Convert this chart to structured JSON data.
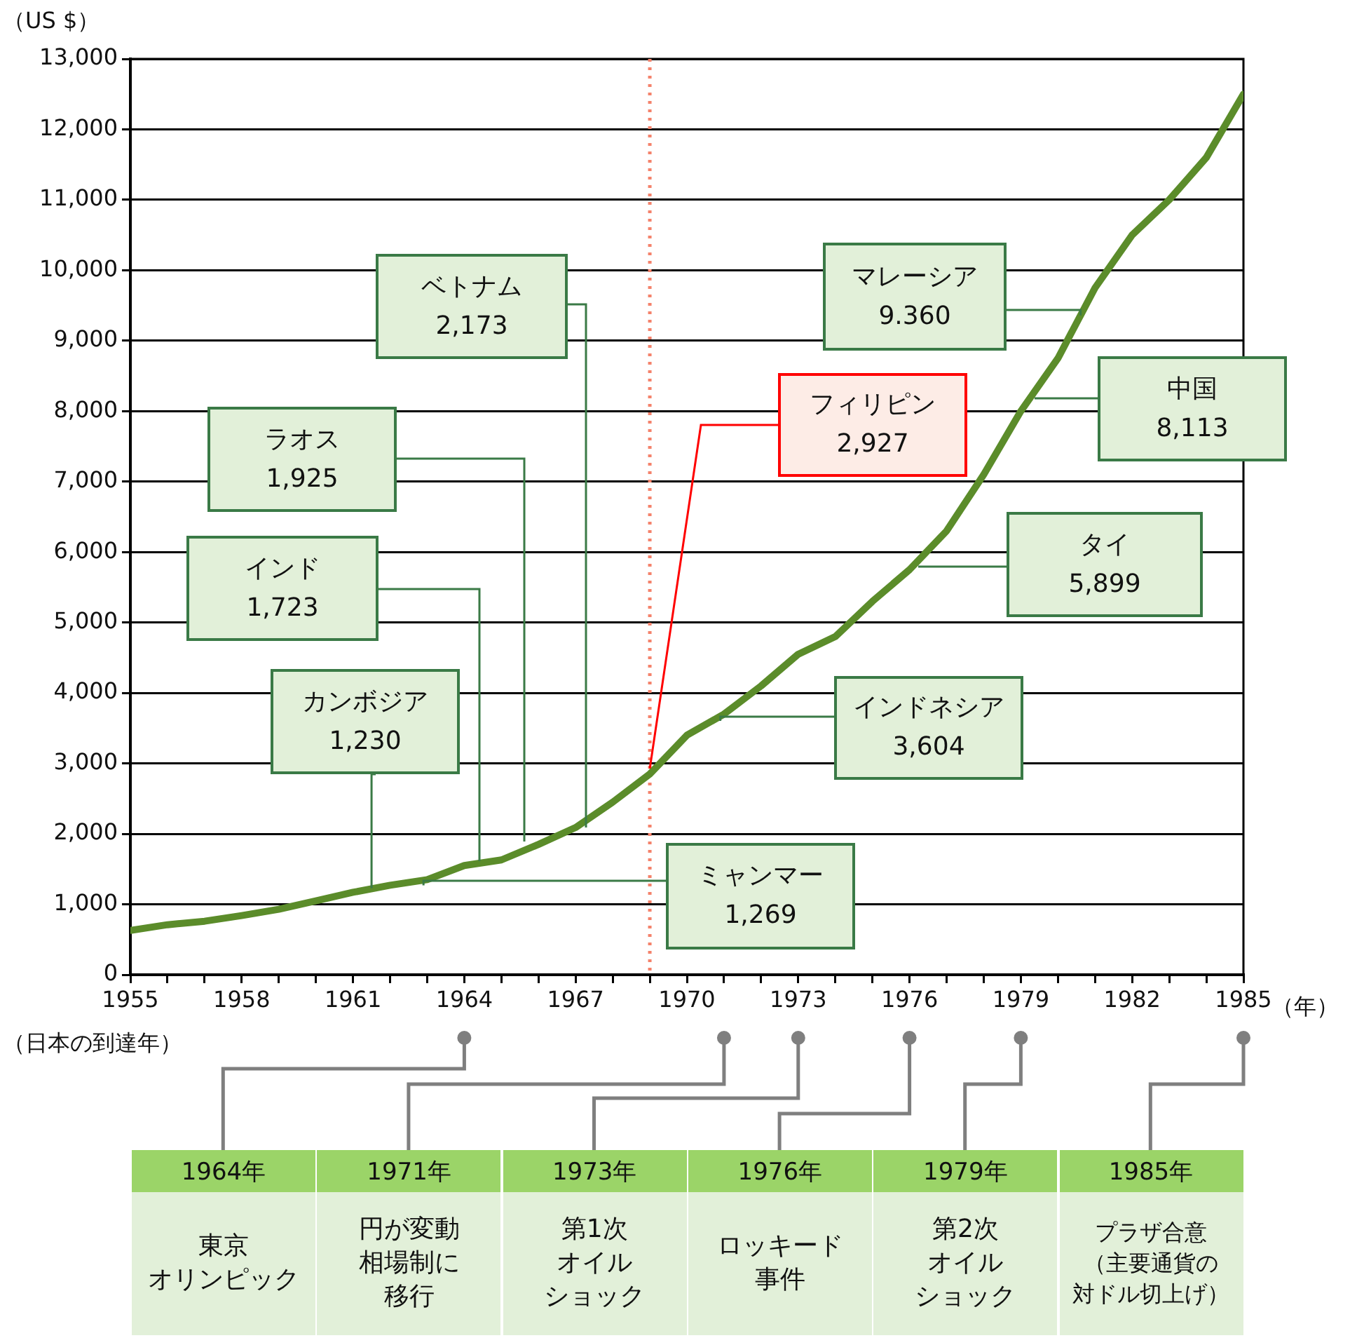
{
  "chart_data": {
    "type": "line",
    "xlabel": "（年）",
    "ylabel": "（US $）",
    "color": "#5b8c2a",
    "marker": "none",
    "line_style": "solid",
    "legend": false,
    "grid": "y",
    "x": [
      1955,
      1956,
      1957,
      1958,
      1959,
      1960,
      1961,
      1962,
      1963,
      1964,
      1965,
      1966,
      1967,
      1968,
      1969,
      1970,
      1971,
      1972,
      1973,
      1974,
      1975,
      1976,
      1977,
      1978,
      1979,
      1980,
      1981,
      1982,
      1983,
      1984,
      1985
    ],
    "values": [
      630,
      710,
      760,
      840,
      930,
      1050,
      1170,
      1270,
      1350,
      1550,
      1630,
      1850,
      2090,
      2450,
      2850,
      3400,
      3700,
      4100,
      4550,
      4800,
      5300,
      5750,
      6300,
      7100,
      8000,
      8750,
      9750,
      10500,
      11000,
      11600,
      12500
    ],
    "xlim": [
      1955,
      1985
    ],
    "xticks": [
      1955,
      {
        "value": 1956,
        "label": null
      },
      {
        "value": 1957,
        "label": null
      },
      1958,
      {
        "value": 1959,
        "label": null
      },
      {
        "value": 1960,
        "label": null
      },
      1961,
      {
        "value": 1962,
        "label": null
      },
      {
        "value": 1963,
        "label": null
      },
      1964,
      {
        "value": 1965,
        "label": null
      },
      {
        "value": 1966,
        "label": null
      },
      1967,
      {
        "value": 1968,
        "label": null
      },
      {
        "value": 1969,
        "label": null
      },
      1970,
      {
        "value": 1971,
        "label": null
      },
      {
        "value": 1972,
        "label": null
      },
      1973,
      {
        "value": 1974,
        "label": null
      },
      {
        "value": 1975,
        "label": null
      },
      1976,
      {
        "value": 1977,
        "label": null
      },
      {
        "value": 1978,
        "label": null
      },
      1979,
      {
        "value": 1980,
        "label": null
      },
      {
        "value": 1981,
        "label": null
      },
      1982,
      {
        "value": 1983,
        "label": null
      },
      {
        "value": 1984,
        "label": null
      },
      1985
    ],
    "ylim": [
      0,
      13000
    ],
    "yticks": [
      0,
      {
        "value": 1000,
        "label": "1,000"
      },
      {
        "value": 2000,
        "label": "2,000"
      },
      {
        "value": 3000,
        "label": "3,000"
      },
      {
        "value": 4000,
        "label": "4,000"
      },
      {
        "value": 5000,
        "label": "5,000"
      },
      {
        "value": 6000,
        "label": "6,000"
      },
      {
        "value": 7000,
        "label": "7,000"
      },
      {
        "value": 8000,
        "label": "8,000"
      },
      {
        "value": 9000,
        "label": "9,000"
      },
      {
        "value": 10000,
        "label": "10,000"
      },
      {
        "value": 11000,
        "label": "11,000"
      },
      {
        "value": 12000,
        "label": "12,000"
      },
      {
        "value": 13000,
        "label": "13,000"
      }
    ],
    "ref_lines": [
      {
        "axis": "x",
        "value": 1969,
        "color": "#f4826b",
        "line_style": "dotted"
      }
    ],
    "annotations": [
      "ベトナム\n2,173",
      "ラオス\n1,925",
      "インド\n1,723",
      {
        "text": "カンボジア\n1,230",
        "x": 1961.5,
        "y": 1230
      },
      {
        "text": "ミャンマー\n1,269",
        "x": 1962.9,
        "y": 1269
      },
      {
        "text": "フィリピン\n2,927",
        "x": 1969,
        "y": 2927
      },
      {
        "text": "インドネシア\n3,604",
        "x": 1970.9,
        "y": 3604
      },
      "タイ\n5,899",
      "中国\n8,113",
      {
        "text": "マレーシア\n9.360",
        "x": 1980.61,
        "y": 9360
      },
      "（日本の到達年）",
      "1964年",
      "東京オリンピック",
      "1971年",
      "円が変動相場制に移行",
      "1973年",
      "第1次オイルショック",
      "1976年",
      "ロッキード事件",
      "1979年",
      "第2次オイルショック",
      "1985年",
      "プラザ合意（主要通貨の対ドル切上げ）"
    ]
  }
}
